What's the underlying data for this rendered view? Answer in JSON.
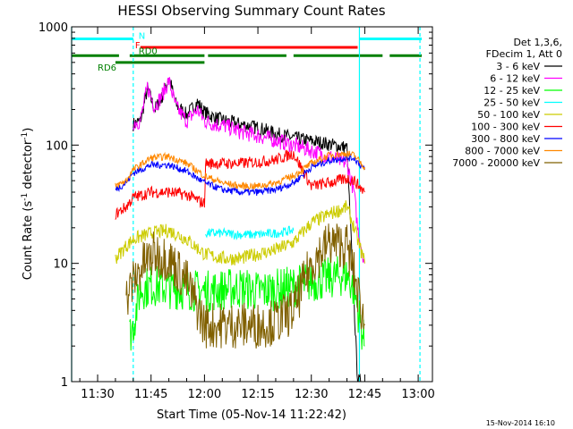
{
  "chart_data": {
    "type": "line",
    "title": "HESSI Observing Summary Count Rates",
    "xlabel": "Start Time (05-Nov-14 11:22:42)",
    "ylabel_main": "Count Rate (s",
    "ylabel_sup1": "-1",
    "ylabel_mid": " detector",
    "ylabel_sup2": "-1",
    "ylabel_end": ")",
    "y_scale": "log",
    "ylim": [
      1,
      1000
    ],
    "xlim_minutes_after_11_00": [
      22.7,
      124
    ],
    "x_ticks": [
      {
        "label": "11:30",
        "minutes": 30
      },
      {
        "label": "11:45",
        "minutes": 45
      },
      {
        "label": "12:00",
        "minutes": 60
      },
      {
        "label": "12:15",
        "minutes": 75
      },
      {
        "label": "12:30",
        "minutes": 90
      },
      {
        "label": "12:45",
        "minutes": 105
      },
      {
        "label": "13:00",
        "minutes": 120
      }
    ],
    "y_ticks": [
      {
        "label": "1",
        "value": 1
      },
      {
        "label": "10",
        "value": 10
      },
      {
        "label": "100",
        "value": 100
      },
      {
        "label": "1000",
        "value": 1000
      }
    ],
    "legend_header": [
      "Det 1,3,6,",
      "FDecim 1, Att 0"
    ],
    "legend_position": "right",
    "series": [
      {
        "name": "3 - 6 keV",
        "color": "#000000",
        "x": [
          40,
          42,
          44,
          46,
          48,
          50,
          52,
          55,
          58,
          60,
          63,
          66,
          70,
          75,
          80,
          85,
          90,
          93,
          96,
          100,
          103,
          104
        ],
        "y": [
          150,
          160,
          300,
          200,
          250,
          380,
          220,
          180,
          230,
          190,
          170,
          160,
          150,
          140,
          125,
          115,
          108,
          105,
          100,
          95,
          0,
          0
        ]
      },
      {
        "name": "6 - 12 keV",
        "color": "#ff00ff",
        "x": [
          40,
          42,
          44,
          46,
          48,
          50,
          52,
          55,
          58,
          60,
          63,
          66,
          70,
          75,
          80,
          85,
          90,
          95,
          100,
          102,
          103,
          105
        ],
        "y": [
          155,
          160,
          310,
          210,
          260,
          350,
          210,
          160,
          200,
          160,
          150,
          145,
          130,
          120,
          110,
          100,
          90,
          80,
          70,
          40,
          20,
          10
        ]
      },
      {
        "name": "12 - 25 keV",
        "color": "#00ff00",
        "x": [
          39,
          40,
          42,
          45,
          50,
          55,
          60,
          65,
          70,
          75,
          80,
          85,
          90,
          95,
          100,
          102,
          105
        ],
        "y": [
          2.5,
          3,
          6,
          6.5,
          6.2,
          6,
          5.8,
          6,
          6.2,
          5.8,
          6,
          6.4,
          7,
          7.5,
          8,
          6,
          2
        ]
      },
      {
        "name": "25 - 50 keV",
        "color": "#00ffff",
        "x": [
          60.3,
          65,
          70,
          75,
          80,
          85
        ],
        "y": [
          18,
          18,
          17.5,
          17.5,
          18,
          19
        ]
      },
      {
        "name": "50 - 100 keV",
        "color": "#cccc00",
        "x": [
          35,
          38,
          40,
          45,
          50,
          55,
          60,
          65,
          70,
          75,
          80,
          85,
          90,
          95,
          100,
          102,
          105
        ],
        "y": [
          11,
          14,
          16,
          18,
          19,
          16,
          12,
          11,
          11,
          12,
          13,
          15,
          22,
          26,
          30,
          20,
          10
        ]
      },
      {
        "name": "100 - 300 keV",
        "color": "#ff0000",
        "x": [
          35,
          38,
          40,
          45,
          50,
          55,
          60,
          60.3,
          65,
          70,
          75,
          80,
          85,
          90,
          95,
          100,
          102,
          105
        ],
        "y": [
          26,
          30,
          36,
          40,
          40,
          38,
          32,
          70,
          70,
          70,
          72,
          75,
          85,
          45,
          48,
          52,
          50,
          40
        ]
      },
      {
        "name": "300 - 800 keV",
        "color": "#0000ff",
        "x": [
          35,
          38,
          40,
          45,
          50,
          55,
          60,
          65,
          70,
          75,
          80,
          85,
          90,
          95,
          100,
          102,
          105
        ],
        "y": [
          42,
          48,
          58,
          68,
          68,
          60,
          48,
          42,
          40,
          40,
          42,
          48,
          65,
          74,
          78,
          78,
          62
        ]
      },
      {
        "name": "800 - 7000 keV",
        "color": "#ff8800",
        "x": [
          35,
          38,
          40,
          45,
          50,
          55,
          60,
          65,
          70,
          75,
          80,
          85,
          90,
          95,
          100,
          102,
          105
        ],
        "y": [
          45,
          50,
          62,
          78,
          80,
          70,
          55,
          48,
          45,
          45,
          48,
          55,
          70,
          82,
          85,
          82,
          65
        ]
      },
      {
        "name": "7000 - 20000 keV",
        "color": "#806000",
        "x": [
          38,
          40,
          43,
          46,
          50,
          55,
          60,
          65,
          70,
          75,
          80,
          85,
          90,
          95,
          100,
          102,
          105
        ],
        "y": [
          5,
          7,
          10,
          12,
          11,
          7,
          3,
          3,
          3,
          3,
          3.2,
          4,
          10,
          15,
          14,
          8,
          3
        ]
      }
    ],
    "state_bars": [
      {
        "label": "N",
        "color": "#00ffff",
        "x_ranges": [
          [
            22.7,
            40
          ],
          [
            103.5,
            121
          ]
        ],
        "y_value": 790
      },
      {
        "label": "F",
        "color": "#ff0000",
        "x_ranges": [
          [
            42,
            103
          ]
        ],
        "y_value": 670
      },
      {
        "label": "RD0",
        "color": "#008000",
        "x_ranges": [
          [
            22.7,
            36
          ],
          [
            39,
            60
          ],
          [
            61,
            83
          ],
          [
            85,
            110
          ],
          [
            112,
            121
          ]
        ],
        "y_value": 570
      },
      {
        "label": "RD6",
        "color": "#008000",
        "x_ranges": [
          [
            35,
            60
          ]
        ],
        "y_value": 500
      }
    ],
    "vlines": [
      {
        "color": "#00ffff",
        "x": 22.7,
        "style": "solid"
      },
      {
        "color": "#00ffff",
        "x": 40,
        "style": "dashed"
      },
      {
        "color": "#00ffff",
        "x": 103.5,
        "style": "solid"
      },
      {
        "color": "#00ffff",
        "x": 120.5,
        "style": "dashed"
      }
    ],
    "footer_date": "15-Nov-2014 16:10"
  }
}
